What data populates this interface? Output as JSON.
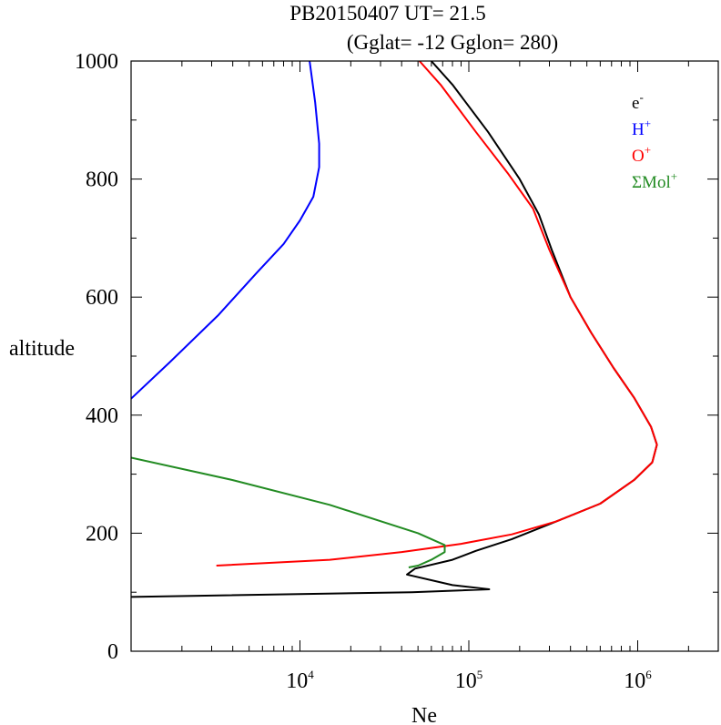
{
  "chart_data": {
    "type": "line",
    "title_line1": "PB20150407   UT=  21.5",
    "title_line2": "(Gglat= -12   Gglon=  280)",
    "xlabel": "Ne",
    "ylabel": "altitude",
    "x_scale": "log",
    "xlim": [
      1000,
      3000000
    ],
    "ylim": [
      0,
      1000
    ],
    "y_ticks": [
      0,
      200,
      400,
      600,
      800,
      1000
    ],
    "x_ticks": [
      {
        "value": 10000,
        "base": "10",
        "exp": "4"
      },
      {
        "value": 100000,
        "base": "10",
        "exp": "5"
      },
      {
        "value": 1000000,
        "base": "10",
        "exp": "6"
      }
    ],
    "grid": false,
    "legend_position": "top-right",
    "series": [
      {
        "name": "e",
        "sup": "-",
        "color": "#000000",
        "points": [
          [
            1000,
            92
          ],
          [
            46000,
            100
          ],
          [
            132000,
            105
          ],
          [
            80000,
            112
          ],
          [
            43000,
            130
          ],
          [
            48000,
            140
          ],
          [
            80000,
            155
          ],
          [
            110000,
            170
          ],
          [
            180000,
            190
          ],
          [
            330000,
            220
          ],
          [
            600000,
            250
          ],
          [
            950000,
            290
          ],
          [
            1220000,
            320
          ],
          [
            1300000,
            350
          ],
          [
            1200000,
            380
          ],
          [
            950000,
            430
          ],
          [
            720000,
            480
          ],
          [
            530000,
            540
          ],
          [
            400000,
            600
          ],
          [
            310000,
            680
          ],
          [
            260000,
            740
          ],
          [
            200000,
            800
          ],
          [
            130000,
            880
          ],
          [
            80000,
            960
          ],
          [
            60000,
            1000
          ]
        ]
      },
      {
        "name": "H",
        "sup": "+",
        "color": "#0000ff",
        "points": [
          [
            1000,
            428
          ],
          [
            1700,
            490
          ],
          [
            3300,
            570
          ],
          [
            5500,
            640
          ],
          [
            8000,
            690
          ],
          [
            10000,
            730
          ],
          [
            12000,
            770
          ],
          [
            13000,
            820
          ],
          [
            13000,
            860
          ],
          [
            12300,
            930
          ],
          [
            11400,
            1000
          ]
        ]
      },
      {
        "name": "O",
        "sup": "+",
        "color": "#ff0000",
        "points": [
          [
            3200,
            145
          ],
          [
            15000,
            155
          ],
          [
            40000,
            168
          ],
          [
            90000,
            182
          ],
          [
            180000,
            198
          ],
          [
            330000,
            220
          ],
          [
            600000,
            250
          ],
          [
            950000,
            290
          ],
          [
            1220000,
            320
          ],
          [
            1300000,
            350
          ],
          [
            1200000,
            380
          ],
          [
            950000,
            430
          ],
          [
            720000,
            480
          ],
          [
            530000,
            540
          ],
          [
            400000,
            600
          ],
          [
            300000,
            680
          ],
          [
            240000,
            750
          ],
          [
            170000,
            810
          ],
          [
            110000,
            880
          ],
          [
            68000,
            960
          ],
          [
            51000,
            1000
          ]
        ]
      },
      {
        "name": "ΣMol",
        "sup": "+",
        "color": "#228b22",
        "points": [
          [
            1000,
            328
          ],
          [
            4000,
            290
          ],
          [
            15000,
            248
          ],
          [
            50000,
            200
          ],
          [
            72000,
            180
          ],
          [
            72000,
            168
          ],
          [
            60000,
            155
          ],
          [
            50000,
            145
          ],
          [
            44000,
            142
          ]
        ]
      }
    ]
  }
}
